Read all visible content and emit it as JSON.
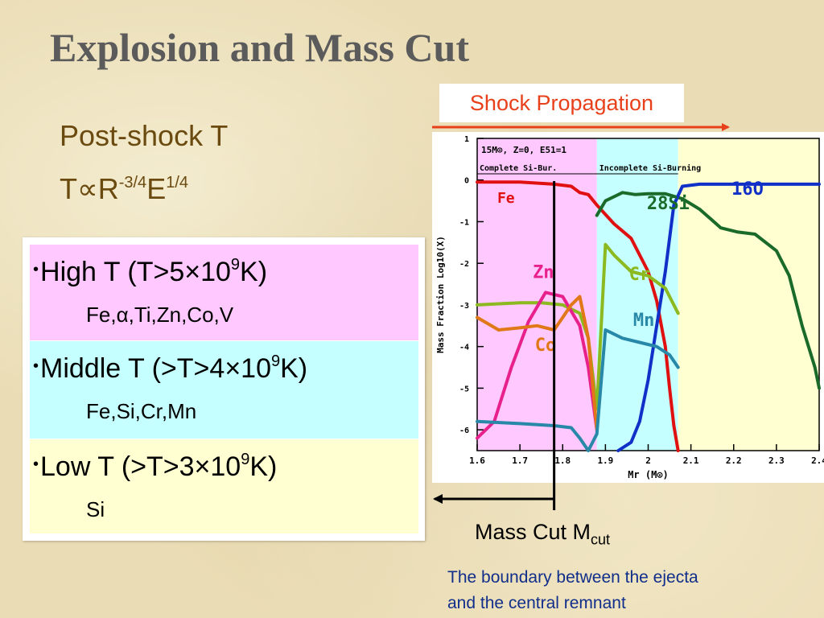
{
  "title": "Explosion and Mass Cut",
  "formulas": {
    "post_shock": "Post-shock T",
    "t_prop": {
      "t": "T",
      "prop": "∝",
      "r": "R",
      "r_exp": "-3/4",
      "e": "E",
      "e_exp": "1/4"
    }
  },
  "bands": [
    {
      "id": "high",
      "dot": "•",
      "pre": "High T (T>5×10",
      "exp": "9",
      "post": "K)",
      "elements": "Fe,α,Ti,Zn,Co,V",
      "color": "#ffc8ff"
    },
    {
      "id": "mid",
      "dot": "•",
      "pre": "Middle T (>T>4×10",
      "exp": "9",
      "post": "K)",
      "elements": "Fe,Si,Cr,Mn",
      "color": "#c6ffff"
    },
    {
      "id": "low",
      "dot": "•",
      "pre": "Low T (>T>3×10",
      "exp": "9",
      "post": "K)",
      "elements": "Si",
      "color": "#ffffd2"
    }
  ],
  "shock_label": "Shock Propagation",
  "mass_cut": {
    "label": "Mass Cut M",
    "sub": "cut"
  },
  "boundary_text": [
    "The boundary between the ejecta",
    "and the central remnant"
  ],
  "chart_data": {
    "type": "line",
    "header": "15M⊙, Z=0, E51=1",
    "zones": [
      {
        "label": "Complete Si-Bur.",
        "from": 1.6,
        "to": 1.88,
        "color": "#ffc8ff"
      },
      {
        "label": "Incomplete Si-Burning",
        "from": 1.88,
        "to": 2.07,
        "color": "#c6ffff"
      },
      {
        "label": "",
        "from": 2.07,
        "to": 2.4,
        "color": "#ffffd2"
      }
    ],
    "xlabel": "Mr (M⊙)",
    "ylabel": "Mass Fraction Log10(X)",
    "xlim": [
      1.6,
      2.4
    ],
    "ylim": [
      -6.5,
      1
    ],
    "xticks": [
      1.6,
      1.7,
      1.8,
      1.9,
      2.0,
      2.1,
      2.2,
      2.3,
      2.4
    ],
    "xtick_labels": [
      "1.6",
      "1.7",
      "1.8",
      "1.9",
      "2",
      "2.1",
      "2.2",
      "2.3",
      "2.4"
    ],
    "yticks": [
      1,
      0,
      -1,
      -2,
      -3,
      -4,
      -5,
      -6
    ],
    "ytick_labels": [
      "1",
      "0",
      "-1",
      "-2",
      "-3",
      "-4",
      "-5",
      "-6"
    ],
    "mass_cut_x": 1.78,
    "series": [
      {
        "name": "Fe",
        "color": "#e01010",
        "label_at": [
          1.647,
          -0.55
        ],
        "x": [
          1.6,
          1.7,
          1.78,
          1.82,
          1.84,
          1.86,
          1.88,
          1.92,
          1.96,
          2.0,
          2.02,
          2.04,
          2.05,
          2.06,
          2.07
        ],
        "y": [
          -0.05,
          -0.05,
          -0.1,
          -0.15,
          -0.3,
          -0.35,
          -0.6,
          -1.05,
          -1.4,
          -2.2,
          -2.9,
          -4.0,
          -5.0,
          -5.9,
          -6.5
        ]
      },
      {
        "name": "28Si",
        "color": "#1a6a2a",
        "label_at": [
          1.997,
          -0.7
        ],
        "x": [
          1.88,
          1.9,
          1.94,
          1.97,
          2.0,
          2.04,
          2.08,
          2.12,
          2.17,
          2.21,
          2.25,
          2.3,
          2.33,
          2.36,
          2.39,
          2.4
        ],
        "y": [
          -0.85,
          -0.5,
          -0.3,
          -0.35,
          -0.33,
          -0.33,
          -0.45,
          -0.7,
          -1.15,
          -1.25,
          -1.3,
          -1.7,
          -2.3,
          -3.5,
          -4.5,
          -5.0
        ]
      },
      {
        "name": "16O",
        "color": "#1030c8",
        "label_at": [
          2.195,
          -0.35
        ],
        "x": [
          1.93,
          1.96,
          1.98,
          2.0,
          2.02,
          2.04,
          2.06,
          2.08,
          2.12,
          2.2,
          2.3,
          2.4
        ],
        "y": [
          -6.5,
          -6.3,
          -5.8,
          -4.8,
          -3.5,
          -2.2,
          -0.6,
          -0.15,
          -0.1,
          -0.1,
          -0.1,
          -0.1
        ]
      },
      {
        "name": "Cr",
        "color": "#8cb820",
        "label_at": [
          1.955,
          -2.4
        ],
        "x": [
          1.6,
          1.7,
          1.75,
          1.8,
          1.84,
          1.86,
          1.88,
          1.9,
          1.92,
          1.96,
          2.0,
          2.04,
          2.07
        ],
        "y": [
          -3.0,
          -2.95,
          -2.95,
          -3.0,
          -3.2,
          -3.8,
          -5.5,
          -1.55,
          -1.8,
          -2.2,
          -2.3,
          -2.6,
          -3.2
        ]
      },
      {
        "name": "Zn",
        "color": "#e8208c",
        "label_at": [
          1.73,
          -2.35
        ],
        "x": [
          1.6,
          1.64,
          1.68,
          1.72,
          1.76,
          1.8,
          1.84,
          1.86,
          1.88
        ],
        "y": [
          -6.2,
          -5.8,
          -4.5,
          -3.4,
          -2.7,
          -2.8,
          -3.5,
          -4.5,
          -6.0
        ]
      },
      {
        "name": "Co",
        "color": "#e07818",
        "label_at": [
          1.735,
          -4.1
        ],
        "x": [
          1.6,
          1.65,
          1.7,
          1.74,
          1.78,
          1.8,
          1.82,
          1.84,
          1.86,
          1.88
        ],
        "y": [
          -3.3,
          -3.6,
          -3.55,
          -3.5,
          -3.6,
          -3.3,
          -3.0,
          -2.8,
          -3.8,
          -6.0
        ]
      },
      {
        "name": "Mn",
        "color": "#2888a8",
        "label_at": [
          1.965,
          -3.5
        ],
        "x": [
          1.6,
          1.7,
          1.78,
          1.82,
          1.84,
          1.86,
          1.88,
          1.9,
          1.94,
          1.98,
          2.02,
          2.05,
          2.07
        ],
        "y": [
          -5.8,
          -5.85,
          -5.9,
          -5.95,
          -6.2,
          -6.5,
          -6.1,
          -3.6,
          -3.8,
          -3.9,
          -4.0,
          -4.2,
          -4.5
        ]
      }
    ]
  }
}
